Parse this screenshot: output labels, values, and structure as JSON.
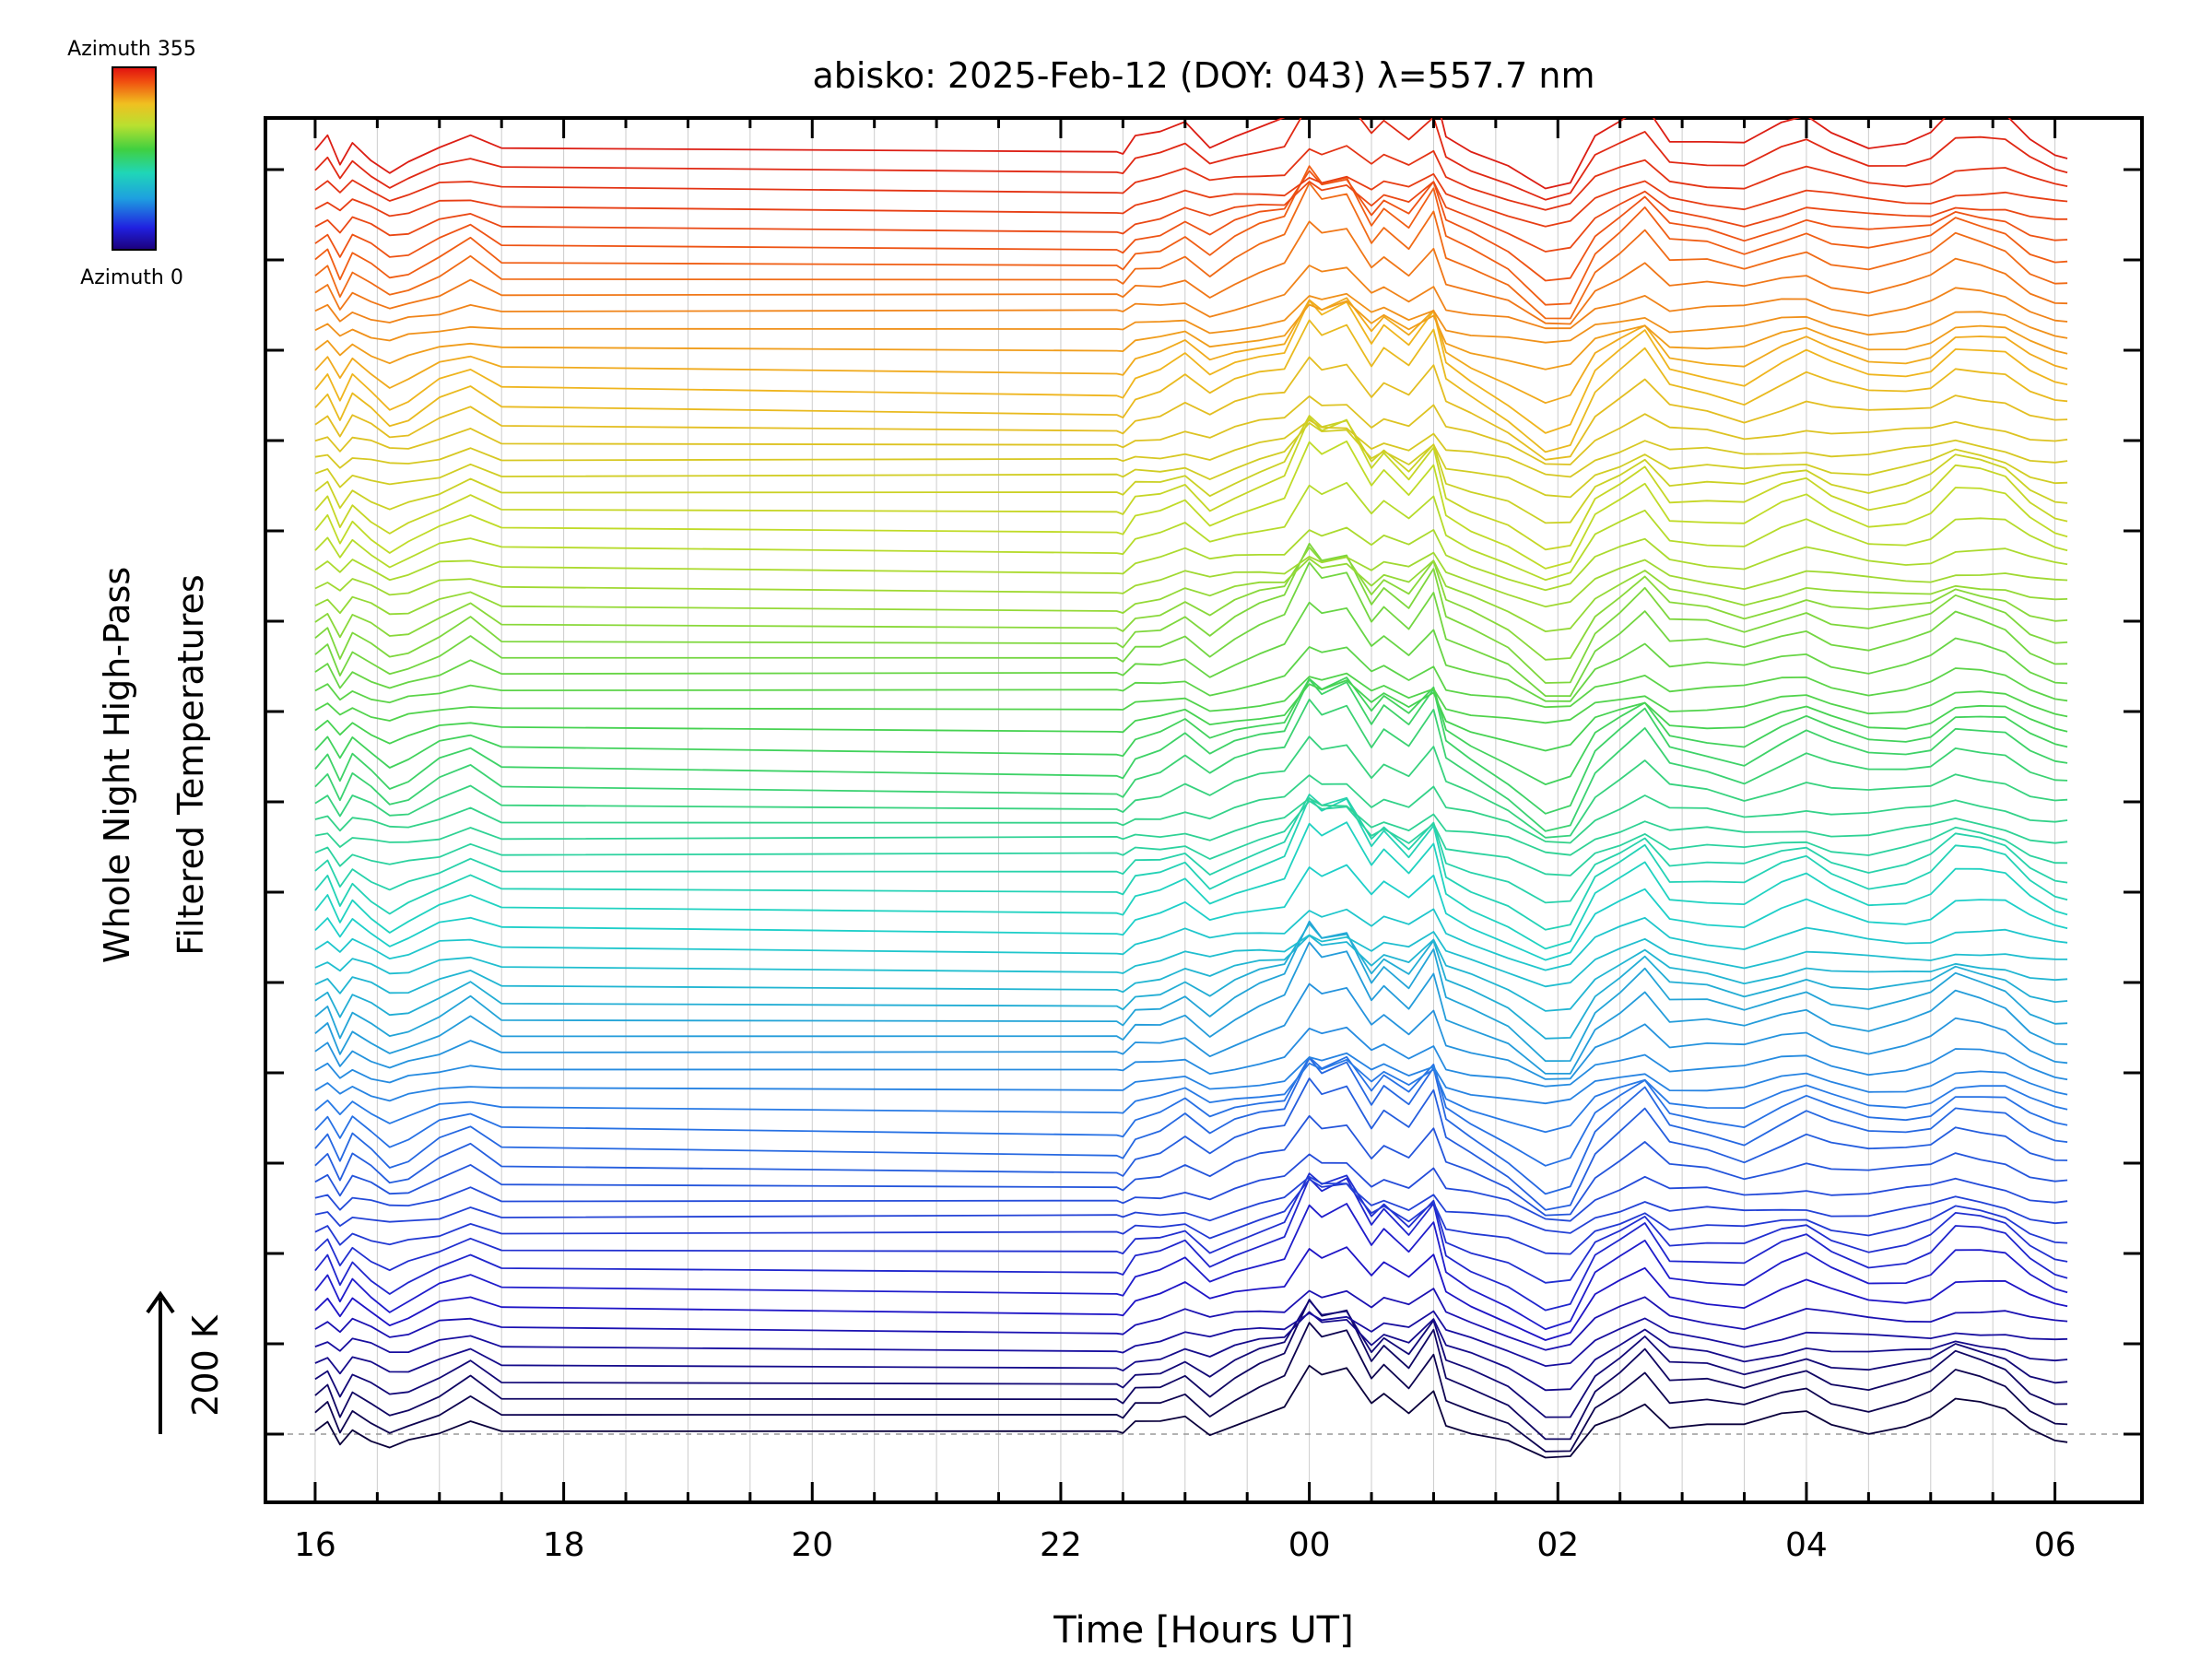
{
  "chart_data": {
    "type": "line",
    "title": "abisko: 2025-Feb-12 (DOY: 043) λ=557.7 nm",
    "xlabel": "Time [Hours UT]",
    "ylabel_line1": "Whole Night High-Pass",
    "ylabel_line2": "Filtered Temperatures",
    "scale_label": "200 K",
    "colorbar": {
      "top_label": "Azimuth 355",
      "bottom_label": "Azimuth 0",
      "min": 0,
      "max": 355
    },
    "x_ticks": [
      "16",
      "18",
      "20",
      "22",
      "00",
      "02",
      "04",
      "06"
    ],
    "x_tick_hours": [
      16,
      18,
      20,
      22,
      24,
      26,
      28,
      30
    ],
    "xlim_hours": [
      15.6,
      30.7
    ],
    "data_start_hour": 16.0,
    "data_end_hour": 30.1,
    "n_series": 72,
    "series_azimuths_step": 5,
    "waveform": {
      "hours": [
        16.0,
        16.1,
        16.2,
        16.3,
        16.45,
        16.6,
        16.75,
        17.0,
        17.25,
        17.5,
        22.45,
        22.5,
        22.6,
        22.8,
        23.0,
        23.2,
        23.4,
        23.6,
        23.8,
        24.0,
        24.1,
        24.3,
        24.5,
        24.6,
        24.8,
        25.0,
        25.1,
        25.3,
        25.6,
        25.9,
        26.1,
        26.3,
        26.5,
        26.7,
        26.9,
        27.2,
        27.5,
        27.8,
        28.0,
        28.2,
        28.5,
        28.8,
        29.0,
        29.2,
        29.4,
        29.6,
        29.8,
        30.0,
        30.1
      ],
      "temps_K": [
        0,
        18,
        -22,
        12,
        -8,
        -28,
        -18,
        6,
        26,
        0,
        -6,
        -10,
        14,
        20,
        38,
        8,
        28,
        42,
        52,
        125,
        105,
        118,
        55,
        78,
        48,
        96,
        28,
        8,
        -18,
        -58,
        -52,
        16,
        42,
        70,
        22,
        18,
        8,
        32,
        44,
        26,
        12,
        18,
        28,
        58,
        52,
        44,
        14,
        -2,
        -4
      ]
    },
    "series_temperature_variation_K": 160,
    "legend_position": "top-left colorbar"
  }
}
